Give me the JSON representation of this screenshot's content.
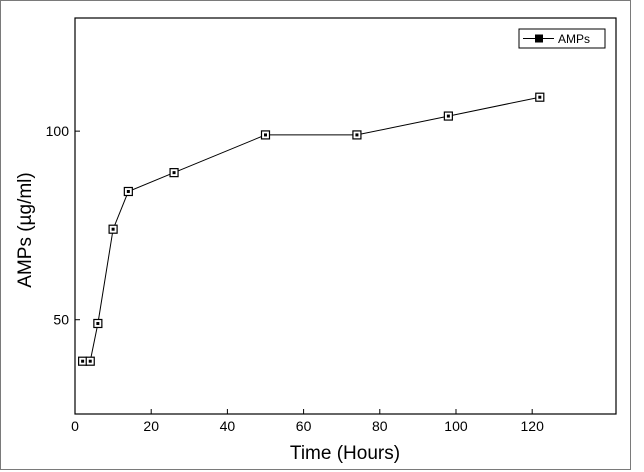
{
  "chart_data": {
    "type": "line",
    "title": "",
    "xlabel": "Time (Hours)",
    "ylabel": "AMPs (µg/ml)",
    "xlim": [
      0,
      142
    ],
    "ylim": [
      25,
      130
    ],
    "x_ticks": [
      0,
      20,
      40,
      60,
      80,
      100,
      120
    ],
    "y_ticks": [
      50,
      100
    ],
    "x_tick_labels": [
      "0",
      "20",
      "40",
      "60",
      "80",
      "100",
      "120"
    ],
    "y_tick_labels": [
      "50",
      "100"
    ],
    "legend_position": "top-right",
    "series": [
      {
        "name": "AMPs",
        "x": [
          2,
          4,
          6,
          10,
          14,
          26,
          50,
          74,
          98,
          122
        ],
        "y": [
          39,
          39,
          49,
          74,
          84,
          89,
          99,
          99,
          104,
          109
        ]
      }
    ]
  }
}
